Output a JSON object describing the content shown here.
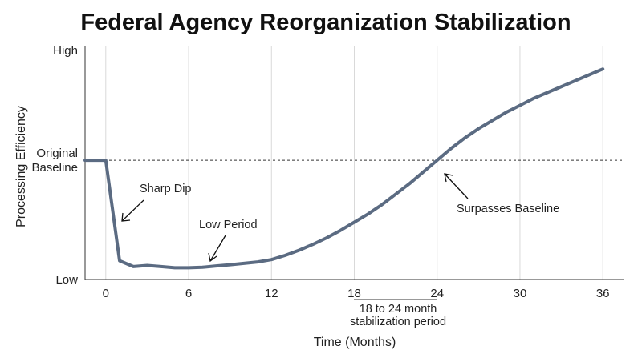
{
  "chart_data": {
    "type": "line",
    "title": "Federal Agency Reorganization Stabilization",
    "xlabel": "Time (Months)",
    "ylabel": "Processing Efficiency",
    "x_ticks": [
      0,
      6,
      12,
      18,
      24,
      30,
      36
    ],
    "xlim": [
      -1.5,
      37.5
    ],
    "ylim": [
      0,
      100
    ],
    "y_ticks": [
      {
        "value": 0,
        "label": "Low"
      },
      {
        "value": 51,
        "label": "Original\nBaseline"
      },
      {
        "value": 98,
        "label": "High"
      }
    ],
    "grid": "vertical",
    "colors": {
      "series": "#5b6b82"
    },
    "series": [
      {
        "name": "",
        "x": [
          -1.5,
          0,
          1,
          2,
          3,
          4,
          5,
          6,
          7,
          8,
          9,
          10,
          11,
          12,
          13,
          14,
          15,
          16,
          17,
          18,
          19,
          20,
          21,
          22,
          23,
          24,
          25,
          26,
          27,
          28,
          29,
          30,
          31,
          32,
          33,
          34,
          35,
          36
        ],
        "y": [
          51,
          51,
          8,
          5.5,
          6,
          5.5,
          5,
          5,
          5.2,
          5.8,
          6.3,
          6.9,
          7.5,
          8.5,
          10.3,
          12.5,
          15,
          17.8,
          21,
          24.5,
          28,
          32,
          36.5,
          41,
          46,
          51,
          56,
          60.5,
          64.5,
          68,
          71.5,
          74.5,
          77.5,
          80,
          82.5,
          85,
          87.5,
          90
        ]
      }
    ],
    "annotations": [
      {
        "text": "Original Baseline (dashed reference line)",
        "y": 51
      },
      {
        "text": "Sharp Dip",
        "x": 1,
        "y": 8
      },
      {
        "text": "Low Period",
        "x": 7.3,
        "y": 5.5
      },
      {
        "text": "Surpasses Baseline",
        "x": 24.5,
        "y": 49
      },
      {
        "text": "18 to 24 month stabilization period",
        "range": [
          18,
          24
        ]
      }
    ]
  },
  "labels": {
    "sharp_dip": "Sharp Dip",
    "low_period": "Low Period",
    "surpasses": "Surpasses Baseline",
    "stab_line1": "18 to 24 month",
    "stab_line2": "stabilization period",
    "baseline_line1": "Original",
    "baseline_line2": "Baseline"
  }
}
